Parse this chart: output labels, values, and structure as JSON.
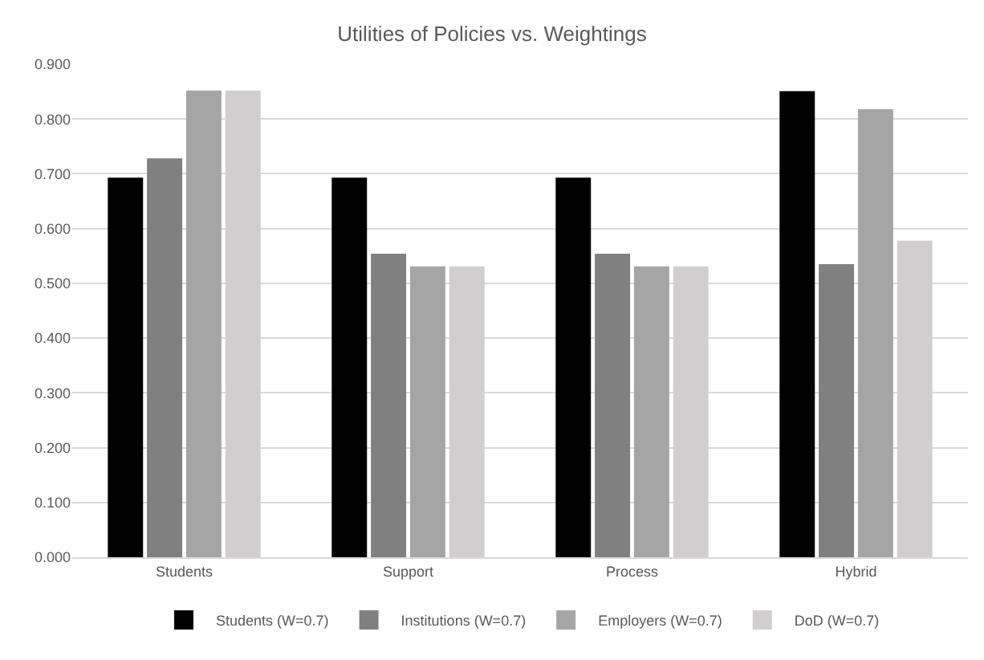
{
  "chart_data": {
    "type": "bar",
    "title": "Utilities of Policies vs. Weightings",
    "categories": [
      "Students",
      "Support",
      "Process",
      "Hybrid"
    ],
    "series": [
      {
        "name": "Students (W=0.7)",
        "color": "#000000",
        "values": [
          0.693,
          0.693,
          0.693,
          0.851
        ]
      },
      {
        "name": "Institutions (W=0.7)",
        "color": "#808080",
        "values": [
          0.728,
          0.554,
          0.554,
          0.535
        ]
      },
      {
        "name": "Employers (W=0.7)",
        "color": "#a5a5a5",
        "values": [
          0.852,
          0.531,
          0.531,
          0.818
        ]
      },
      {
        "name": "DoD (W=0.7)",
        "color": "#d0cece",
        "values": [
          0.852,
          0.531,
          0.531,
          0.578
        ]
      }
    ],
    "ylim": [
      0,
      0.9
    ],
    "yticks": [
      {
        "value": 0,
        "label": "0.000"
      },
      {
        "value": 0.1,
        "label": "0.100"
      },
      {
        "value": 0.2,
        "label": "0.200"
      },
      {
        "value": 0.3,
        "label": "0.300"
      },
      {
        "value": 0.4,
        "label": "0.400"
      },
      {
        "value": 0.5,
        "label": "0.500"
      },
      {
        "value": 0.6,
        "label": "0.600"
      },
      {
        "value": 0.7,
        "label": "0.700"
      },
      {
        "value": 0.8,
        "label": "0.800"
      },
      {
        "value": 0.9,
        "label": "0.900"
      }
    ],
    "grid": "y",
    "legend": "bottom"
  }
}
